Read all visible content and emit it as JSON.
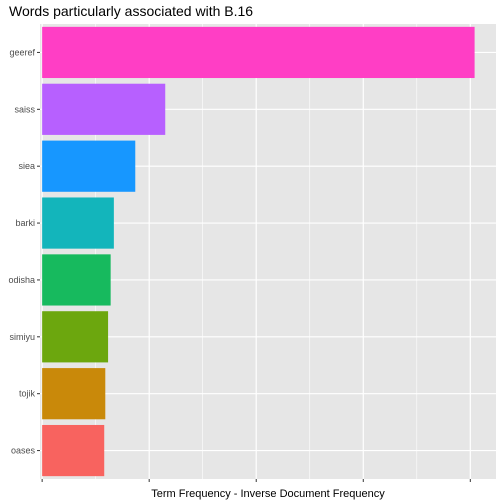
{
  "chart_data": {
    "type": "bar",
    "orientation": "horizontal",
    "title": "Words particularly associated with B.16",
    "xlabel": "Term Frequency - Inverse Document Frequency",
    "ylabel": "",
    "categories": [
      "geeref",
      "saiss",
      "siea",
      "barki",
      "odisha",
      "simiyu",
      "tojik",
      "oases"
    ],
    "values": [
      0.0202,
      0.00575,
      0.00435,
      0.00335,
      0.0032,
      0.00308,
      0.00295,
      0.0029
    ],
    "colors": [
      "#FF3EC5",
      "#B760FF",
      "#1797FF",
      "#13B5BB",
      "#17BA5E",
      "#6CA70E",
      "#C9890A",
      "#F8635F"
    ],
    "xlim": [
      -0.0001,
      0.0212
    ],
    "x_grid_major": [
      0,
      0.005,
      0.01,
      0.015,
      0.02
    ],
    "show_x_tick_labels": false,
    "grid": true,
    "background": "#E6E6E6",
    "grid_color": "#FFFFFF"
  }
}
